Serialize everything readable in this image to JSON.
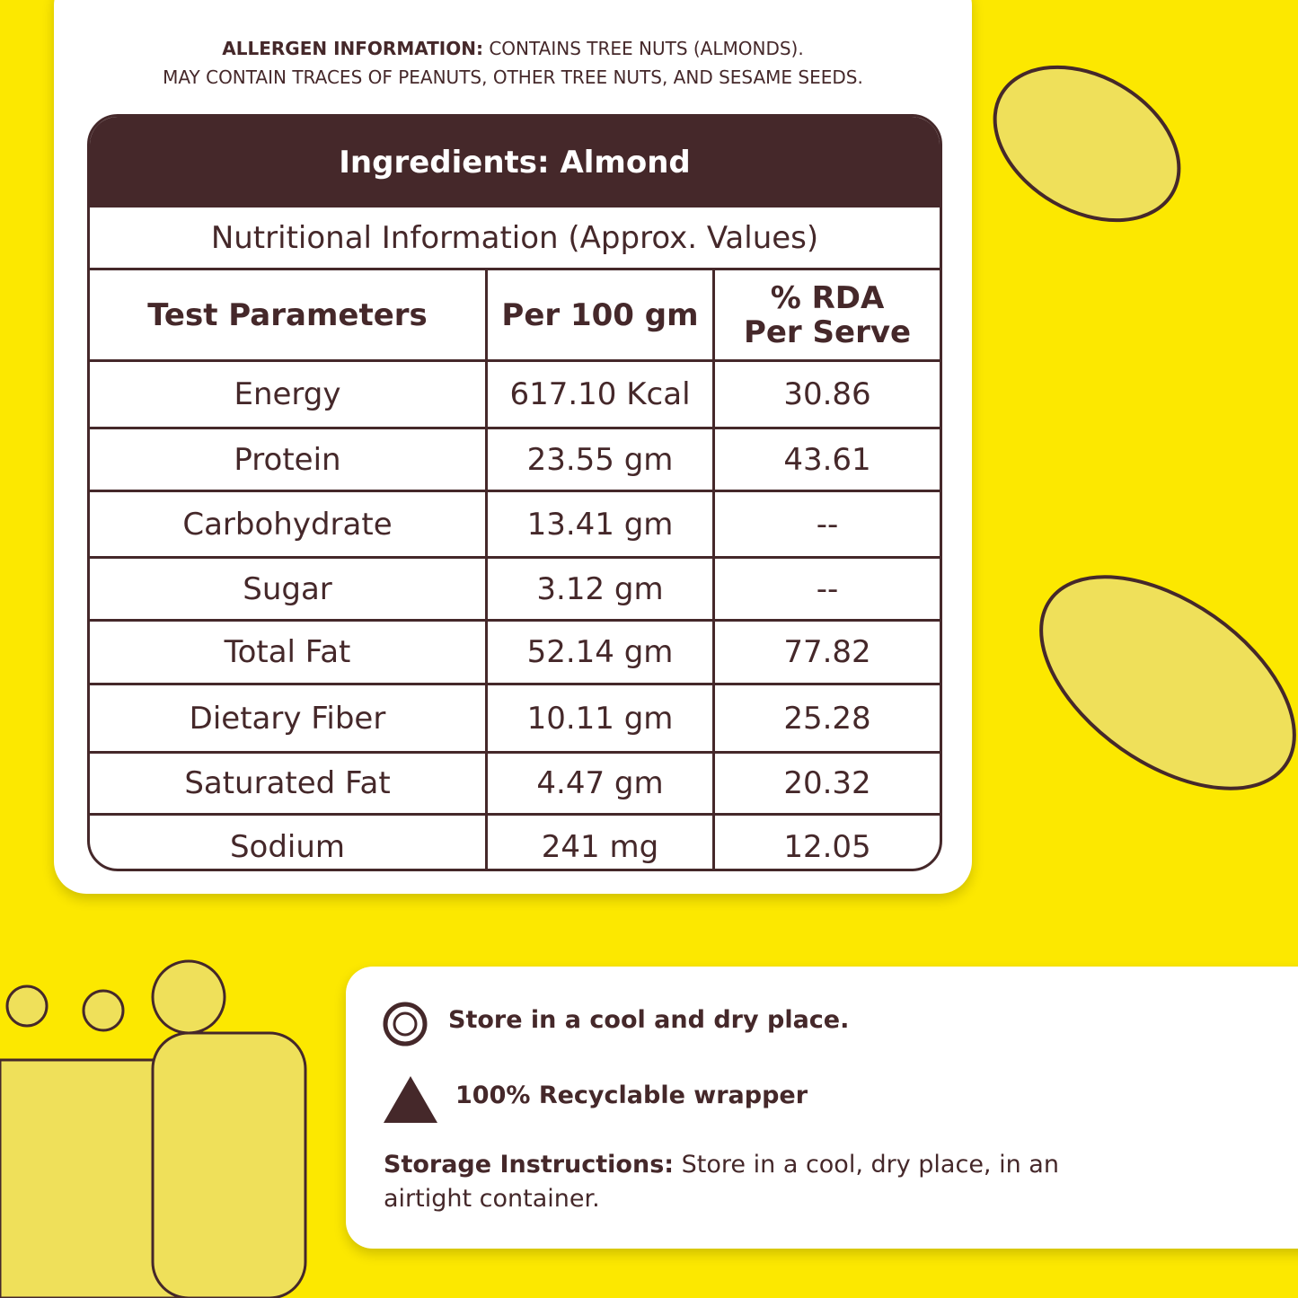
{
  "allergen": {
    "label": "ALLERGEN INFORMATION:",
    "text": "CONTAINS TREE NUTS (ALMONDS).",
    "line2": "MAY CONTAIN TRACES OF PEANUTS, OTHER TREE NUTS, AND SESAME SEEDS."
  },
  "table": {
    "title": "Ingredients: Almond",
    "subtitle": "Nutritional Information (Approx. Values)",
    "headers": [
      "Test Parameters",
      "Per 100 gm",
      [
        "% RDA",
        "Per Serve"
      ]
    ],
    "rows": [
      [
        "Energy",
        "617.10 Kcal",
        "30.86"
      ],
      [
        "Protein",
        "23.55 gm",
        "43.61"
      ],
      [
        "Carbohydrate",
        "13.41 gm",
        "--"
      ],
      [
        "Sugar",
        "3.12 gm",
        "--"
      ],
      [
        "Total Fat",
        "52.14 gm",
        "77.82"
      ],
      [
        "Dietary Fiber",
        "10.11 gm",
        "25.28"
      ],
      [
        "Saturated Fat",
        "4.47 gm",
        "20.32"
      ],
      [
        "Sodium",
        "241 mg",
        "12.05"
      ]
    ]
  },
  "storage": {
    "items": [
      "Store in a cool and dry place.",
      "100% Recyclable wrapper"
    ],
    "label": "Storage Instructions:",
    "text": "Store in a cool, dry place, in an airtight container."
  }
}
